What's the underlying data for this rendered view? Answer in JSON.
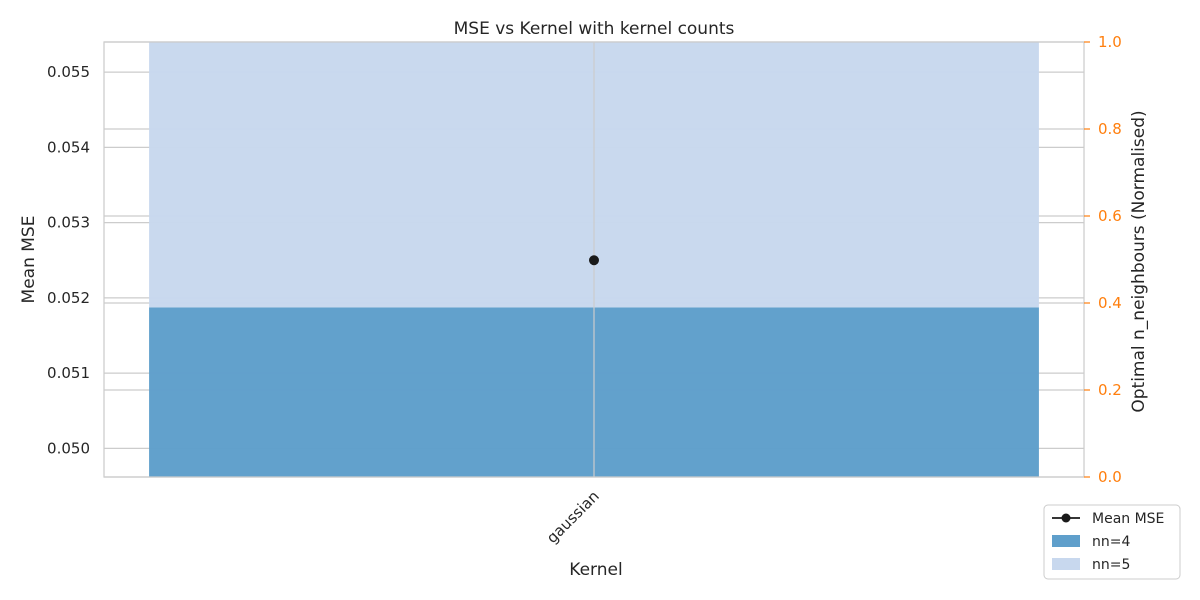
{
  "chart_data": {
    "type": "bar",
    "title": "MSE vs Kernel with kernel counts",
    "xlabel": "Kernel",
    "ylabel": "Mean MSE",
    "y2label": "Optimal n_neighbours (Normalised)",
    "categories": [
      "gaussian"
    ],
    "ylim": [
      0.04962,
      0.0554
    ],
    "y_ticks": [
      0.05,
      0.051,
      0.052,
      0.053,
      0.054,
      0.055
    ],
    "y_tick_labels": [
      "0.050",
      "0.051",
      "0.052",
      "0.053",
      "0.054",
      "0.055"
    ],
    "y2lim": [
      0,
      1
    ],
    "y2_ticks": [
      0,
      0.2,
      0.4,
      0.6,
      0.8,
      1.0
    ],
    "y2_tick_labels": [
      "0.0",
      "0.2",
      "0.4",
      "0.6",
      "0.8",
      "1.0"
    ],
    "series": [
      {
        "name": "Mean MSE",
        "type": "line",
        "axis": "left",
        "values": [
          0.0525
        ]
      },
      {
        "name": "nn=4",
        "type": "stacked-bar",
        "axis": "right",
        "values": [
          0.39
        ]
      },
      {
        "name": "nn=5",
        "type": "stacked-bar",
        "axis": "right",
        "values": [
          0.61
        ]
      }
    ],
    "grid": true,
    "legend_position": "bottom-right",
    "colors": {
      "mean_mse": "#1a1a1a",
      "nn4": "#5f9fcb",
      "nn5": "#c8d8ee",
      "right_axis": "#ff7f0e",
      "grid": "#cccccc",
      "frame": "#cccccc"
    }
  }
}
